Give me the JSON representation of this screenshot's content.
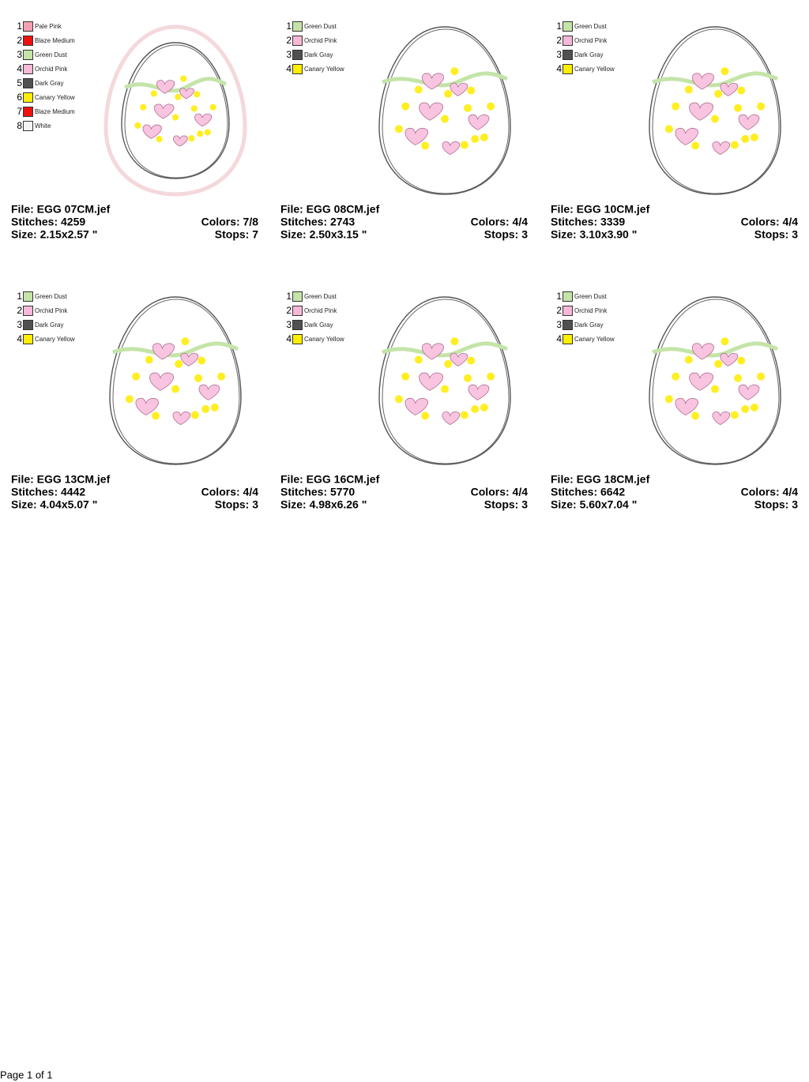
{
  "designs": [
    {
      "file": "File: EGG 07CM.jef",
      "stitches": "Stitches: 4259",
      "colors": "Colors: 7/8",
      "size": "Size: 2.15x2.57 \"",
      "stops": "Stops: 7",
      "palette": [
        {
          "num": 1,
          "name": "Pale Pink",
          "color": "#f4a0b0"
        },
        {
          "num": 2,
          "name": "Blaze Medium",
          "color": "#ee1111"
        },
        {
          "num": 3,
          "name": "Green Dust",
          "color": "#c4e4a8"
        },
        {
          "num": 4,
          "name": "Orchid Pink",
          "color": "#f8b8d8"
        },
        {
          "num": 5,
          "name": "Dark Gray",
          "color": "#505050"
        },
        {
          "num": 6,
          "name": "Canary Yellow",
          "color": "#ffee00"
        },
        {
          "num": 7,
          "name": "Blaze Medium",
          "color": "#ee1111"
        },
        {
          "num": 8,
          "name": "White",
          "color": "#f4f4f4"
        }
      ]
    },
    {
      "file": "File: EGG 08CM.jef",
      "stitches": "Stitches: 2743",
      "colors": "Colors: 4/4",
      "size": "Size: 2.50x3.15 \"",
      "stops": "Stops: 3",
      "palette": [
        {
          "num": 1,
          "name": "Green Dust",
          "color": "#c4e4a8"
        },
        {
          "num": 2,
          "name": "Orchid Pink",
          "color": "#f8b8d8"
        },
        {
          "num": 3,
          "name": "Dark Gray",
          "color": "#505050"
        },
        {
          "num": 4,
          "name": "Canary Yellow",
          "color": "#ffee00"
        }
      ]
    },
    {
      "file": "File: EGG 10CM.jef",
      "stitches": "Stitches: 3339",
      "colors": "Colors: 4/4",
      "size": "Size: 3.10x3.90 \"",
      "stops": "Stops: 3",
      "palette": [
        {
          "num": 1,
          "name": "Green Dust",
          "color": "#c4e4a8"
        },
        {
          "num": 2,
          "name": "Orchid Pink",
          "color": "#f8b8d8"
        },
        {
          "num": 3,
          "name": "Dark Gray",
          "color": "#505050"
        },
        {
          "num": 4,
          "name": "Canary Yellow",
          "color": "#ffee00"
        }
      ]
    },
    {
      "file": "File: EGG 13CM.jef",
      "stitches": "Stitches: 4442",
      "colors": "Colors: 4/4",
      "size": "Size: 4.04x5.07 \"",
      "stops": "Stops: 3",
      "palette": [
        {
          "num": 1,
          "name": "Green Dust",
          "color": "#c4e4a8"
        },
        {
          "num": 2,
          "name": "Orchid Pink",
          "color": "#f8b8d8"
        },
        {
          "num": 3,
          "name": "Dark Gray",
          "color": "#505050"
        },
        {
          "num": 4,
          "name": "Canary Yellow",
          "color": "#ffee00"
        }
      ]
    },
    {
      "file": "File: EGG 16CM.jef",
      "stitches": "Stitches: 5770",
      "colors": "Colors: 4/4",
      "size": "Size: 4.98x6.26 \"",
      "stops": "Stops: 3",
      "palette": [
        {
          "num": 1,
          "name": "Green Dust",
          "color": "#c4e4a8"
        },
        {
          "num": 2,
          "name": "Orchid Pink",
          "color": "#f8b8d8"
        },
        {
          "num": 3,
          "name": "Dark Gray",
          "color": "#505050"
        },
        {
          "num": 4,
          "name": "Canary Yellow",
          "color": "#ffee00"
        }
      ]
    },
    {
      "file": "File: EGG 18CM.jef",
      "stitches": "Stitches: 6642",
      "colors": "Colors: 4/4",
      "size": "Size: 5.60x7.04 \"",
      "stops": "Stops: 3",
      "palette": [
        {
          "num": 1,
          "name": "Green Dust",
          "color": "#c4e4a8"
        },
        {
          "num": 2,
          "name": "Orchid Pink",
          "color": "#f8b8d8"
        },
        {
          "num": 3,
          "name": "Dark Gray",
          "color": "#505050"
        },
        {
          "num": 4,
          "name": "Canary Yellow",
          "color": "#ffee00"
        }
      ]
    }
  ],
  "footer": "Page 1 of 1"
}
